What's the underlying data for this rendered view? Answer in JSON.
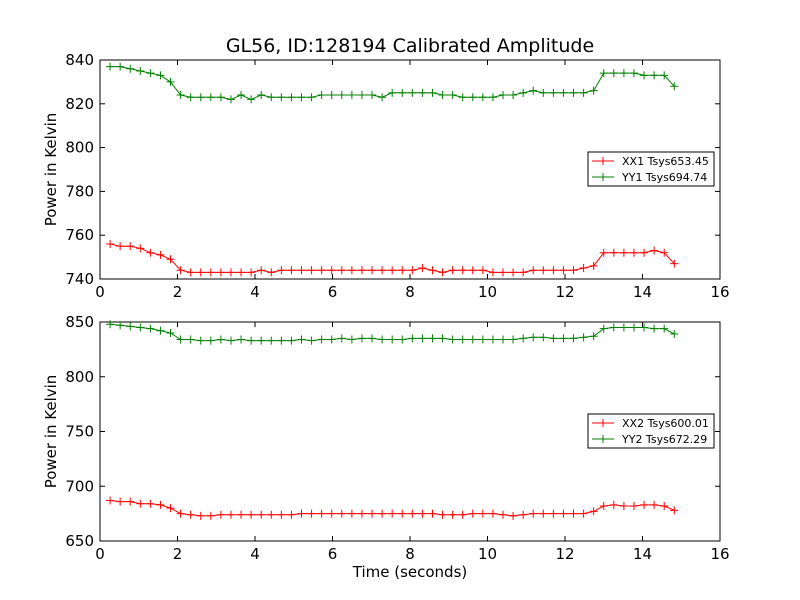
{
  "chart_data": [
    {
      "type": "line",
      "title": "GL56, ID:128194 Calibrated Amplitude",
      "xlabel": "",
      "ylabel": "Power in Kelvin",
      "xlim": [
        0,
        16
      ],
      "ylim": [
        740,
        840
      ],
      "xticks": [
        0,
        2,
        4,
        6,
        8,
        10,
        12,
        14,
        16
      ],
      "yticks": [
        740,
        760,
        780,
        800,
        820,
        840
      ],
      "legend_position": "center-right",
      "grid": false,
      "x": [
        0.26,
        0.52,
        0.78,
        1.04,
        1.3,
        1.56,
        1.82,
        2.08,
        2.34,
        2.6,
        2.86,
        3.12,
        3.38,
        3.64,
        3.9,
        4.16,
        4.42,
        4.68,
        4.94,
        5.2,
        5.46,
        5.72,
        5.98,
        6.24,
        6.5,
        6.76,
        7.02,
        7.28,
        7.54,
        7.8,
        8.06,
        8.32,
        8.58,
        8.84,
        9.1,
        9.36,
        9.62,
        9.88,
        10.14,
        10.4,
        10.66,
        10.92,
        11.18,
        11.44,
        11.7,
        11.96,
        12.22,
        12.48,
        12.74,
        13.0,
        13.26,
        13.52,
        13.78,
        14.04,
        14.3,
        14.56,
        14.82
      ],
      "series": [
        {
          "name": "XX1 Tsys653.45",
          "color": "#ff0000",
          "values": [
            756,
            755,
            755,
            754,
            752,
            751,
            749,
            744,
            743,
            743,
            743,
            743,
            743,
            743,
            743,
            744,
            743,
            744,
            744,
            744,
            744,
            744,
            744,
            744,
            744,
            744,
            744,
            744,
            744,
            744,
            744,
            745,
            744,
            743,
            744,
            744,
            744,
            744,
            743,
            743,
            743,
            743,
            744,
            744,
            744,
            744,
            744,
            745,
            746,
            752,
            752,
            752,
            752,
            752,
            753,
            752,
            747
          ]
        },
        {
          "name": "YY1 Tsys694.74",
          "color": "#008000",
          "values": [
            837,
            837,
            836,
            835,
            834,
            833,
            830,
            824,
            823,
            823,
            823,
            823,
            822,
            824,
            822,
            824,
            823,
            823,
            823,
            823,
            823,
            824,
            824,
            824,
            824,
            824,
            824,
            823,
            825,
            825,
            825,
            825,
            825,
            824,
            824,
            823,
            823,
            823,
            823,
            824,
            824,
            825,
            826,
            825,
            825,
            825,
            825,
            825,
            826,
            834,
            834,
            834,
            834,
            833,
            833,
            833,
            828
          ]
        }
      ]
    },
    {
      "type": "line",
      "title": "",
      "xlabel": "Time (seconds)",
      "ylabel": "Power in Kelvin",
      "xlim": [
        0,
        16
      ],
      "ylim": [
        650,
        850
      ],
      "xticks": [
        0,
        2,
        4,
        6,
        8,
        10,
        12,
        14,
        16
      ],
      "yticks": [
        650,
        700,
        750,
        800,
        850
      ],
      "legend_position": "center-right",
      "grid": false,
      "x": [
        0.26,
        0.52,
        0.78,
        1.04,
        1.3,
        1.56,
        1.82,
        2.08,
        2.34,
        2.6,
        2.86,
        3.12,
        3.38,
        3.64,
        3.9,
        4.16,
        4.42,
        4.68,
        4.94,
        5.2,
        5.46,
        5.72,
        5.98,
        6.24,
        6.5,
        6.76,
        7.02,
        7.28,
        7.54,
        7.8,
        8.06,
        8.32,
        8.58,
        8.84,
        9.1,
        9.36,
        9.62,
        9.88,
        10.14,
        10.4,
        10.66,
        10.92,
        11.18,
        11.44,
        11.7,
        11.96,
        12.22,
        12.48,
        12.74,
        13.0,
        13.26,
        13.52,
        13.78,
        14.04,
        14.3,
        14.56,
        14.82
      ],
      "series": [
        {
          "name": "XX2 Tsys600.01",
          "color": "#ff0000",
          "values": [
            687,
            686,
            686,
            684,
            684,
            683,
            680,
            675,
            674,
            673,
            673,
            674,
            674,
            674,
            674,
            674,
            674,
            674,
            674,
            675,
            675,
            675,
            675,
            675,
            675,
            675,
            675,
            675,
            675,
            675,
            675,
            675,
            675,
            674,
            674,
            674,
            675,
            675,
            675,
            674,
            673,
            674,
            675,
            675,
            675,
            675,
            675,
            675,
            677,
            682,
            683,
            682,
            682,
            683,
            683,
            682,
            678
          ]
        },
        {
          "name": "YY2 Tsys672.29",
          "color": "#008000",
          "values": [
            848,
            847,
            846,
            845,
            844,
            842,
            840,
            834,
            834,
            833,
            833,
            834,
            833,
            834,
            833,
            833,
            833,
            833,
            833,
            834,
            833,
            834,
            834,
            835,
            834,
            835,
            835,
            834,
            834,
            834,
            835,
            835,
            835,
            835,
            834,
            834,
            834,
            834,
            834,
            834,
            834,
            835,
            836,
            836,
            835,
            835,
            835,
            836,
            837,
            844,
            845,
            845,
            845,
            845,
            844,
            844,
            839
          ]
        }
      ]
    }
  ]
}
